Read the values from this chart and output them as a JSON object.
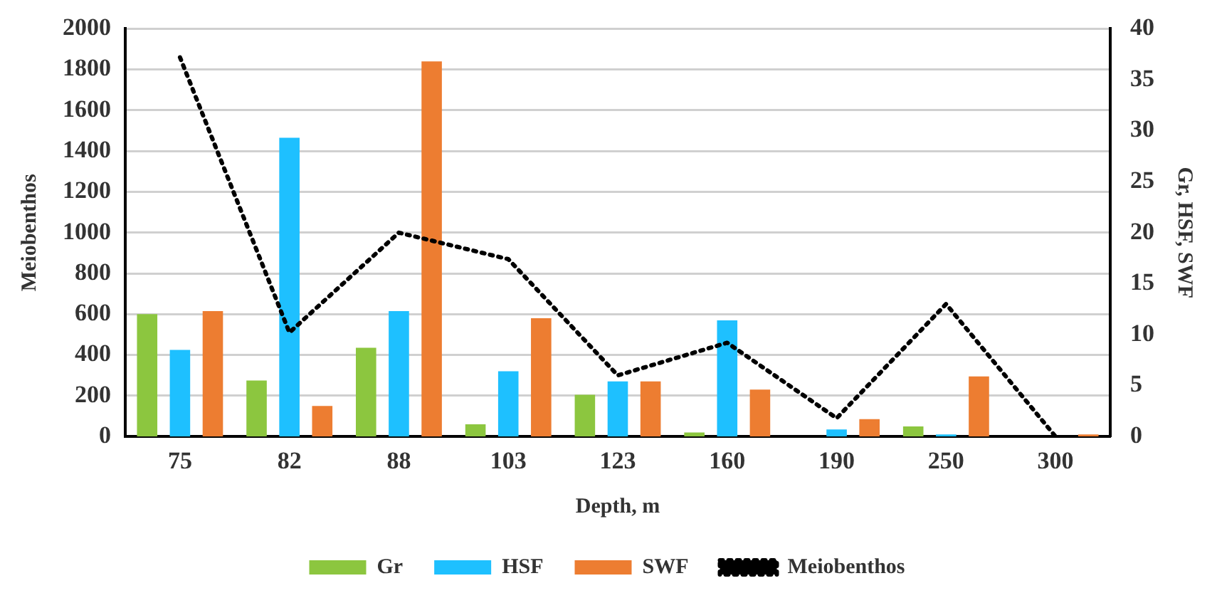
{
  "chart_data": {
    "type": "bar",
    "xlabel": "Depth, m",
    "ylabel": "Meiobenthos",
    "y2label": "Gr, HSF, SWF",
    "categories": [
      "75",
      "82",
      "88",
      "103",
      "123",
      "160",
      "190",
      "250",
      "300"
    ],
    "series": [
      {
        "name": "Gr",
        "color": "#8cc63f",
        "axis": "y2",
        "values": [
          12.0,
          5.5,
          8.7,
          1.2,
          4.1,
          0.4,
          0,
          1.0,
          0
        ]
      },
      {
        "name": "HSF",
        "color": "#1ec0ff",
        "axis": "y2",
        "values": [
          8.5,
          29.3,
          12.3,
          6.4,
          5.4,
          11.4,
          0.7,
          0.2,
          0
        ]
      },
      {
        "name": "SWF",
        "color": "#ed7d31",
        "axis": "y2",
        "values": [
          12.3,
          3.0,
          36.8,
          11.6,
          5.4,
          4.6,
          1.7,
          5.9,
          0.2
        ]
      },
      {
        "name": "Meiobenthos",
        "type": "line",
        "color": "#000000",
        "axis": "y",
        "line_style": "dotted",
        "marker": "none",
        "values": [
          1860,
          510,
          1000,
          870,
          300,
          460,
          90,
          650,
          0
        ]
      }
    ],
    "ylim": [
      0,
      2000
    ],
    "yticks": [
      0,
      200,
      400,
      600,
      800,
      1000,
      1200,
      1400,
      1600,
      1800,
      2000
    ],
    "y2lim": [
      0,
      40
    ],
    "y2ticks": [
      0,
      5,
      10,
      15,
      20,
      25,
      30,
      35,
      40
    ],
    "grid": "y",
    "legend": "bottom"
  }
}
